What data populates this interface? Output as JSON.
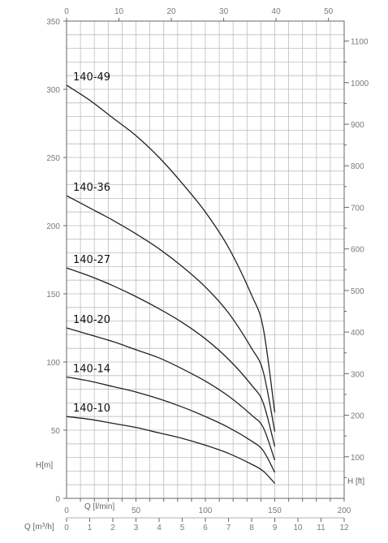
{
  "chart_data": {
    "type": "line",
    "title": "",
    "axes": {
      "h_m": {
        "label": "H[m]",
        "range": [
          0,
          350
        ],
        "ticks": [
          0,
          50,
          100,
          150,
          200,
          250,
          300,
          350
        ]
      },
      "h_ft": {
        "label": "H [ft]",
        "range": [
          0,
          1148
        ],
        "ticks": [
          100,
          200,
          300,
          400,
          500,
          600,
          700,
          800,
          900,
          1000,
          1100
        ]
      },
      "q_lmin": {
        "label": "Q [l/min]",
        "range": [
          0,
          200
        ],
        "ticks": [
          0,
          50,
          100,
          150,
          200
        ]
      },
      "q_m3h": {
        "label_prefix": "Q [m",
        "label_sup": "3",
        "label_suffix": "/h]",
        "range": [
          0,
          12
        ],
        "ticks": [
          0,
          1,
          2,
          3,
          4,
          5,
          6,
          7,
          8,
          9,
          10,
          11,
          12
        ]
      },
      "top_scale": {
        "range": [
          0,
          53
        ],
        "ticks": [
          0,
          10,
          20,
          30,
          40,
          50
        ]
      }
    },
    "grid": true,
    "series": [
      {
        "name": "140-49",
        "x": [
          0,
          1,
          2,
          3,
          4,
          5,
          6,
          7,
          8,
          8.5,
          9
        ],
        "y": [
          303,
          292,
          279,
          266,
          250,
          231,
          210,
          184,
          149,
          125,
          63
        ]
      },
      {
        "name": "140-36",
        "x": [
          0,
          1,
          2,
          3,
          4,
          5,
          6,
          7,
          8,
          8.5,
          9
        ],
        "y": [
          222,
          213,
          204,
          194,
          183,
          170,
          155,
          136,
          110,
          93,
          49
        ]
      },
      {
        "name": "140-27",
        "x": [
          0,
          1,
          2,
          3,
          4,
          5,
          6,
          7,
          8,
          8.5,
          9
        ],
        "y": [
          169,
          163,
          156,
          148,
          139,
          129,
          117,
          102,
          83,
          70,
          38
        ]
      },
      {
        "name": "140-20",
        "x": [
          0,
          1,
          2,
          3,
          4,
          5,
          6,
          7,
          8,
          8.5,
          9
        ],
        "y": [
          125,
          120,
          115,
          109,
          103,
          95,
          86,
          75,
          61,
          52,
          28
        ]
      },
      {
        "name": "140-14",
        "x": [
          0,
          1,
          2,
          3,
          4,
          5,
          6,
          7,
          8,
          8.5,
          9
        ],
        "y": [
          89,
          86,
          82,
          78,
          73,
          67,
          60,
          52,
          42,
          35,
          19
        ]
      },
      {
        "name": "140-10",
        "x": [
          0,
          1,
          2,
          3,
          4,
          5,
          6,
          7,
          8,
          8.5,
          9
        ],
        "y": [
          60,
          58,
          55,
          52,
          48,
          44,
          39,
          33,
          25,
          20,
          11
        ]
      }
    ]
  }
}
